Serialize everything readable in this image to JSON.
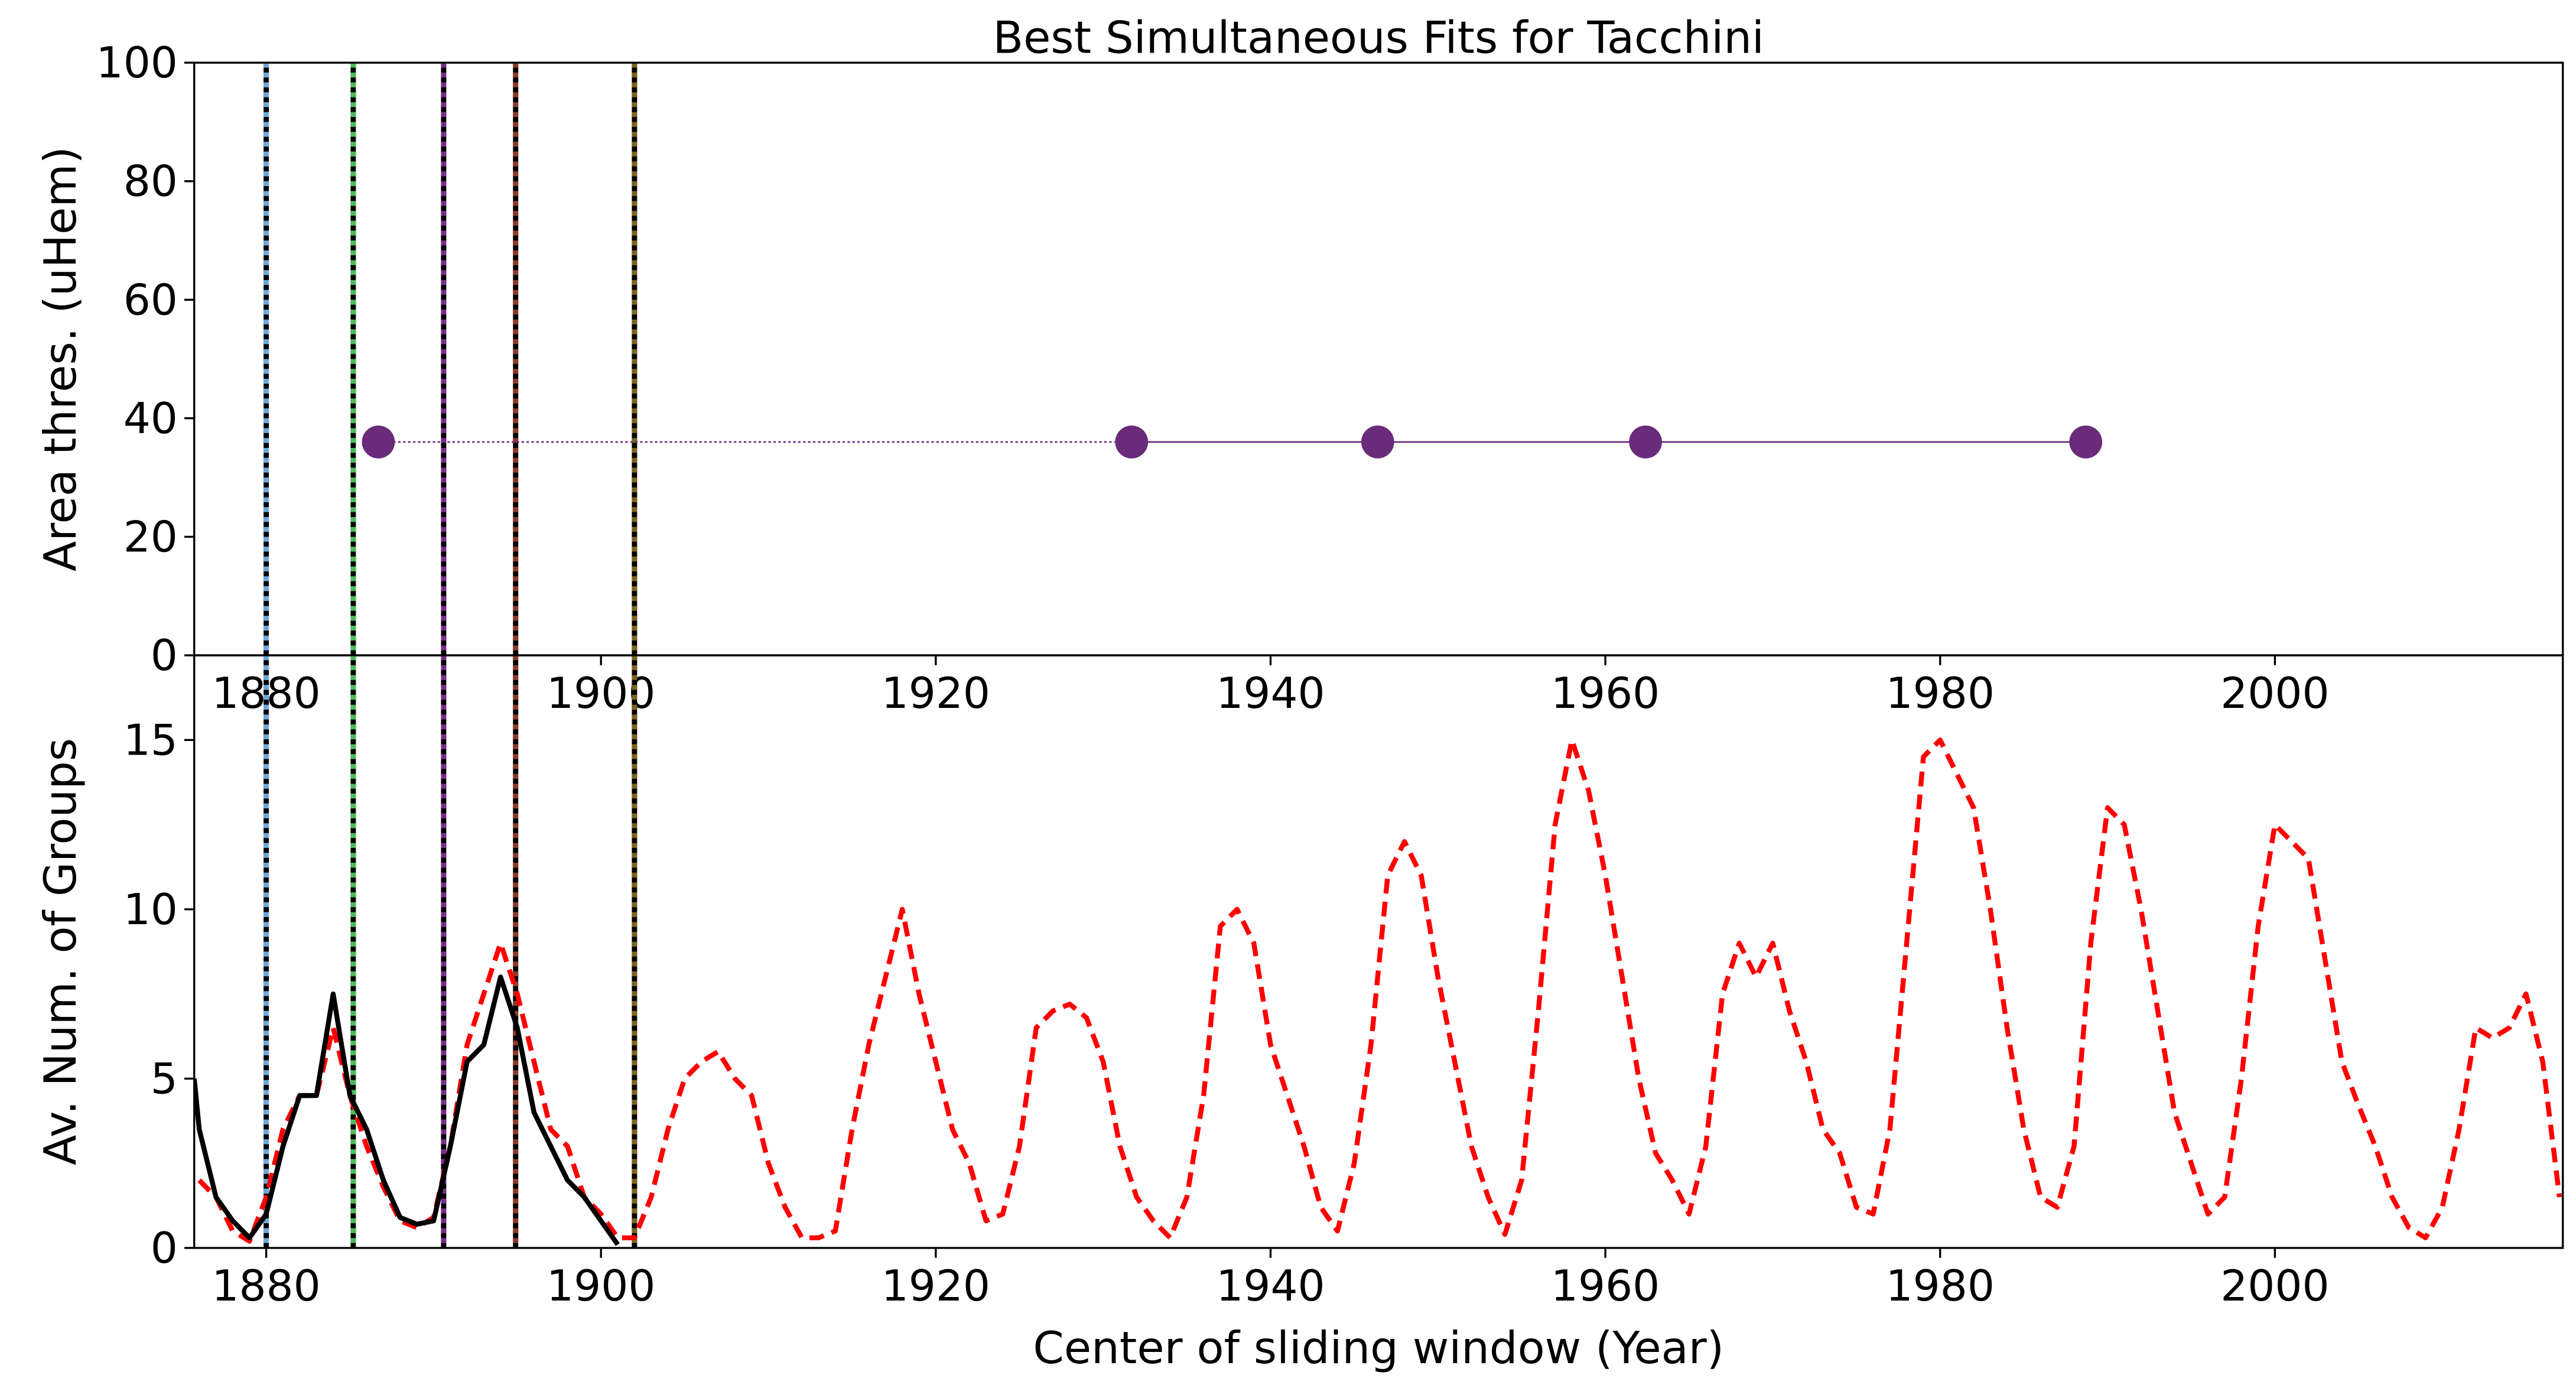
{
  "chart_data": [
    {
      "type": "scatter",
      "title": "Best Simultaneous Fits for Tacchini",
      "y_label": "Area thres. (uHem)",
      "xlim": [
        1875.7,
        2017.2
      ],
      "ylim": [
        0,
        100
      ],
      "xticks": [
        1880,
        1900,
        1920,
        1940,
        1960,
        1980,
        2000
      ],
      "yticks": [
        0,
        20,
        40,
        60,
        80,
        100
      ],
      "series": [
        {
          "color": "#6a2c7a",
          "x": [
            1886.7,
            1931.7,
            1946.4,
            1962.4,
            1988.7
          ],
          "values": [
            36,
            36,
            36,
            36,
            36
          ],
          "segment_styles": [
            "dotted",
            "solid",
            "solid",
            "solid"
          ]
        }
      ],
      "vlines": [
        {
          "x": 1880.0,
          "color": "#6fa8dc"
        },
        {
          "x": 1885.2,
          "color": "#4cbb5b"
        },
        {
          "x": 1890.6,
          "color": "#7a2c8a"
        },
        {
          "x": 1894.9,
          "color": "#8b3a2a"
        },
        {
          "x": 1902.0,
          "color": "#7a6420"
        }
      ]
    },
    {
      "type": "line",
      "x_label": "Center of sliding window (Year)",
      "y_label": "Av. Num. of Groups",
      "xlim": [
        1875.7,
        2017.2
      ],
      "ylim": [
        0,
        17.5
      ],
      "xticks": [
        1880,
        1900,
        1920,
        1940,
        1960,
        1980,
        2000
      ],
      "yticks": [
        0,
        5,
        10,
        15
      ],
      "series": [
        {
          "color": "#ff0000",
          "dash": true,
          "x": [
            1876,
            1877,
            1878,
            1879,
            1880,
            1881,
            1882,
            1883,
            1884,
            1885,
            1886,
            1887,
            1888,
            1889,
            1890,
            1891,
            1892,
            1893,
            1894,
            1895,
            1896,
            1897,
            1898,
            1899,
            1900,
            1901,
            1902,
            1903,
            1904,
            1905,
            1906,
            1907,
            1908,
            1909,
            1910,
            1911,
            1912,
            1913,
            1914,
            1915,
            1916,
            1917,
            1918,
            1919,
            1920,
            1921,
            1922,
            1923,
            1924,
            1925,
            1926,
            1927,
            1928,
            1929,
            1930,
            1931,
            1932,
            1933,
            1934,
            1935,
            1936,
            1937,
            1938,
            1939,
            1940,
            1941,
            1942,
            1943,
            1944,
            1945,
            1946,
            1947,
            1948,
            1949,
            1950,
            1951,
            1952,
            1953,
            1954,
            1955,
            1956,
            1957,
            1958,
            1959,
            1960,
            1961,
            1962,
            1963,
            1964,
            1965,
            1966,
            1967,
            1968,
            1969,
            1970,
            1971,
            1972,
            1973,
            1974,
            1975,
            1976,
            1977,
            1978,
            1979,
            1980,
            1981,
            1982,
            1983,
            1984,
            1985,
            1986,
            1987,
            1988,
            1989,
            1990,
            1991,
            1992,
            1993,
            1994,
            1995,
            1996,
            1997,
            1998,
            1999,
            2000,
            2001,
            2002,
            2003,
            2004,
            2005,
            2006,
            2007,
            2008,
            2009,
            2010,
            2011,
            2012,
            2013,
            2014,
            2015,
            2016,
            2017
          ],
          "values": [
            2.0,
            1.5,
            0.5,
            0.2,
            1.5,
            3.5,
            4.5,
            4.5,
            6.5,
            4.5,
            3.0,
            1.8,
            0.8,
            0.6,
            0.9,
            3.0,
            6.0,
            7.5,
            9.0,
            7.5,
            5.5,
            3.5,
            3.0,
            1.5,
            1.0,
            0.3,
            0.3,
            1.5,
            3.5,
            5.0,
            5.5,
            5.8,
            5.0,
            4.5,
            2.5,
            1.2,
            0.3,
            0.3,
            0.5,
            3.5,
            6.0,
            8.0,
            10.0,
            7.5,
            5.5,
            3.5,
            2.5,
            0.8,
            1.0,
            3.0,
            6.5,
            7.0,
            7.2,
            6.8,
            5.5,
            3.0,
            1.5,
            0.8,
            0.3,
            1.5,
            4.5,
            9.5,
            10.0,
            9.0,
            6.0,
            4.5,
            3.0,
            1.2,
            0.5,
            2.5,
            6.0,
            11.0,
            12.0,
            11.0,
            8.0,
            5.5,
            3.0,
            1.5,
            0.4,
            2.0,
            7.0,
            12.5,
            15.0,
            13.5,
            11.0,
            8.0,
            5.0,
            2.8,
            2.0,
            1.0,
            3.0,
            7.5,
            9.0,
            8.0,
            9.0,
            7.0,
            5.5,
            3.5,
            2.8,
            1.2,
            1.0,
            3.5,
            9.0,
            14.5,
            15.0,
            14.0,
            13.0,
            10.0,
            6.5,
            3.5,
            1.5,
            1.2,
            3.0,
            9.0,
            13.0,
            12.5,
            10.0,
            7.0,
            4.0,
            2.5,
            1.0,
            1.5,
            5.0,
            9.5,
            12.5,
            12.0,
            11.5,
            8.5,
            5.5,
            4.2,
            3.0,
            1.5,
            0.6,
            0.3,
            1.2,
            3.5,
            6.5,
            6.2,
            6.5,
            7.5,
            5.5,
            1.5
          ]
        },
        {
          "color": "#000000",
          "dash": false,
          "x": [
            1875.7,
            1876,
            1877,
            1878,
            1879,
            1880,
            1881,
            1882,
            1883,
            1884,
            1885,
            1886,
            1887,
            1888,
            1889,
            1890,
            1891,
            1892,
            1893,
            1894,
            1895,
            1896,
            1897,
            1898,
            1899,
            1900,
            1901
          ],
          "values": [
            5.0,
            3.5,
            1.5,
            0.8,
            0.3,
            1.0,
            3.0,
            4.5,
            4.5,
            7.5,
            4.5,
            3.5,
            2.0,
            0.9,
            0.7,
            0.8,
            3.0,
            5.5,
            6.0,
            8.0,
            6.5,
            4.0,
            3.0,
            2.0,
            1.5,
            0.8,
            0.1
          ]
        }
      ],
      "vlines": [
        {
          "x": 1880.0,
          "color": "#6fa8dc"
        },
        {
          "x": 1885.2,
          "color": "#4cbb5b"
        },
        {
          "x": 1890.6,
          "color": "#7a2c8a"
        },
        {
          "x": 1894.9,
          "color": "#8b3a2a"
        },
        {
          "x": 1902.0,
          "color": "#7a6420"
        }
      ]
    }
  ]
}
